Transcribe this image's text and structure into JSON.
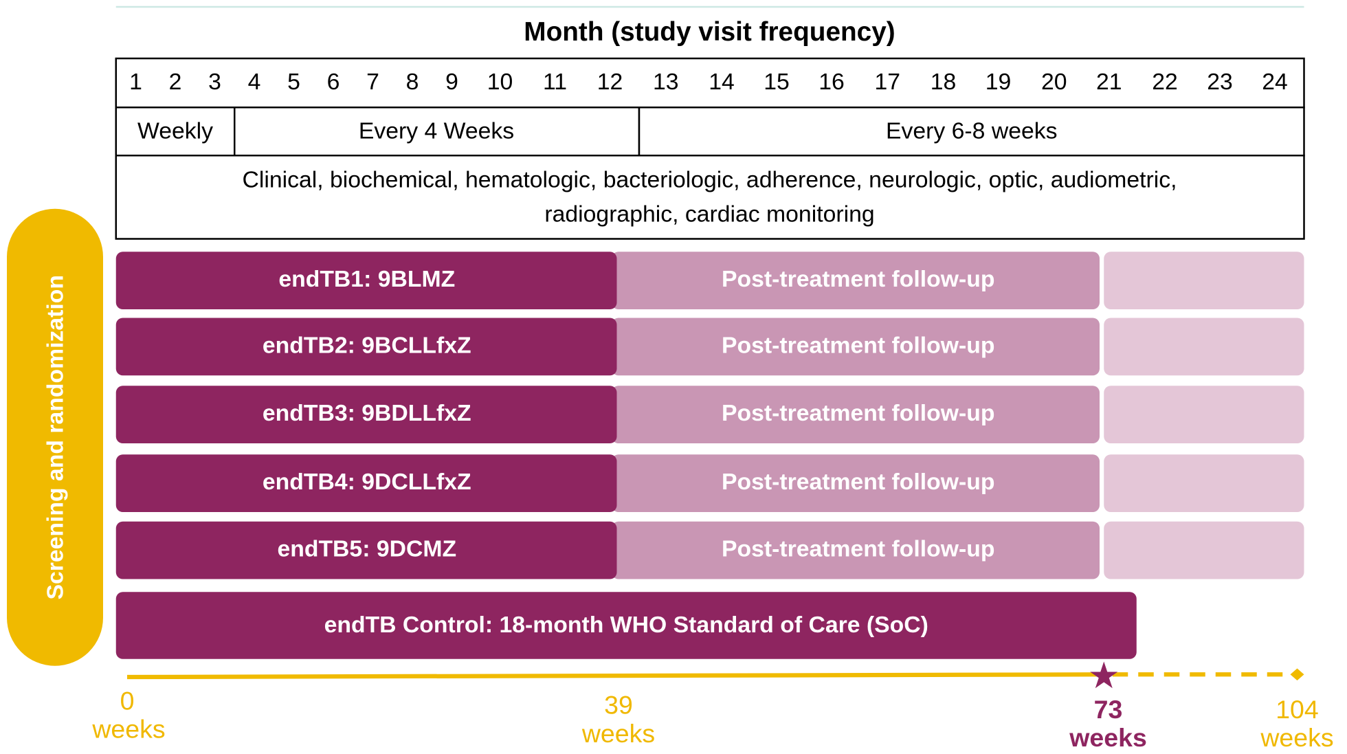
{
  "header": {
    "title": "Month (study visit frequency)"
  },
  "months": [
    1,
    2,
    3,
    4,
    5,
    6,
    7,
    8,
    9,
    10,
    11,
    12,
    13,
    14,
    15,
    16,
    17,
    18,
    19,
    20,
    21,
    22,
    23,
    24
  ],
  "frequency": [
    "Weekly",
    "Every 4 Weeks",
    "Every 6-8 weeks"
  ],
  "monitoring": [
    "Clinical, biochemical, hematologic, bacteriologic, adherence, neurologic, optic, audiometric,",
    "radiographic, cardiac monitoring"
  ],
  "side_label": "Screening and randomization",
  "arms": [
    {
      "regimen": "endTB1: 9BLMZ",
      "followup": "Post-treatment follow-up"
    },
    {
      "regimen": "endTB2: 9BCLLfxZ",
      "followup": "Post-treatment follow-up"
    },
    {
      "regimen": "endTB3: 9BDLLfxZ",
      "followup": "Post-treatment follow-up"
    },
    {
      "regimen": "endTB4: 9DCLLfxZ",
      "followup": "Post-treatment follow-up"
    },
    {
      "regimen": "endTB5: 9DCMZ",
      "followup": "Post-treatment follow-up"
    }
  ],
  "control": "endTB Control: 18-month WHO Standard of Care (SoC)",
  "timeline": [
    {
      "value": 0,
      "unit": "weeks"
    },
    {
      "value": 39,
      "unit": "weeks"
    },
    {
      "value": 73,
      "unit": "weeks"
    },
    {
      "value": 104,
      "unit": "weeks"
    }
  ]
}
